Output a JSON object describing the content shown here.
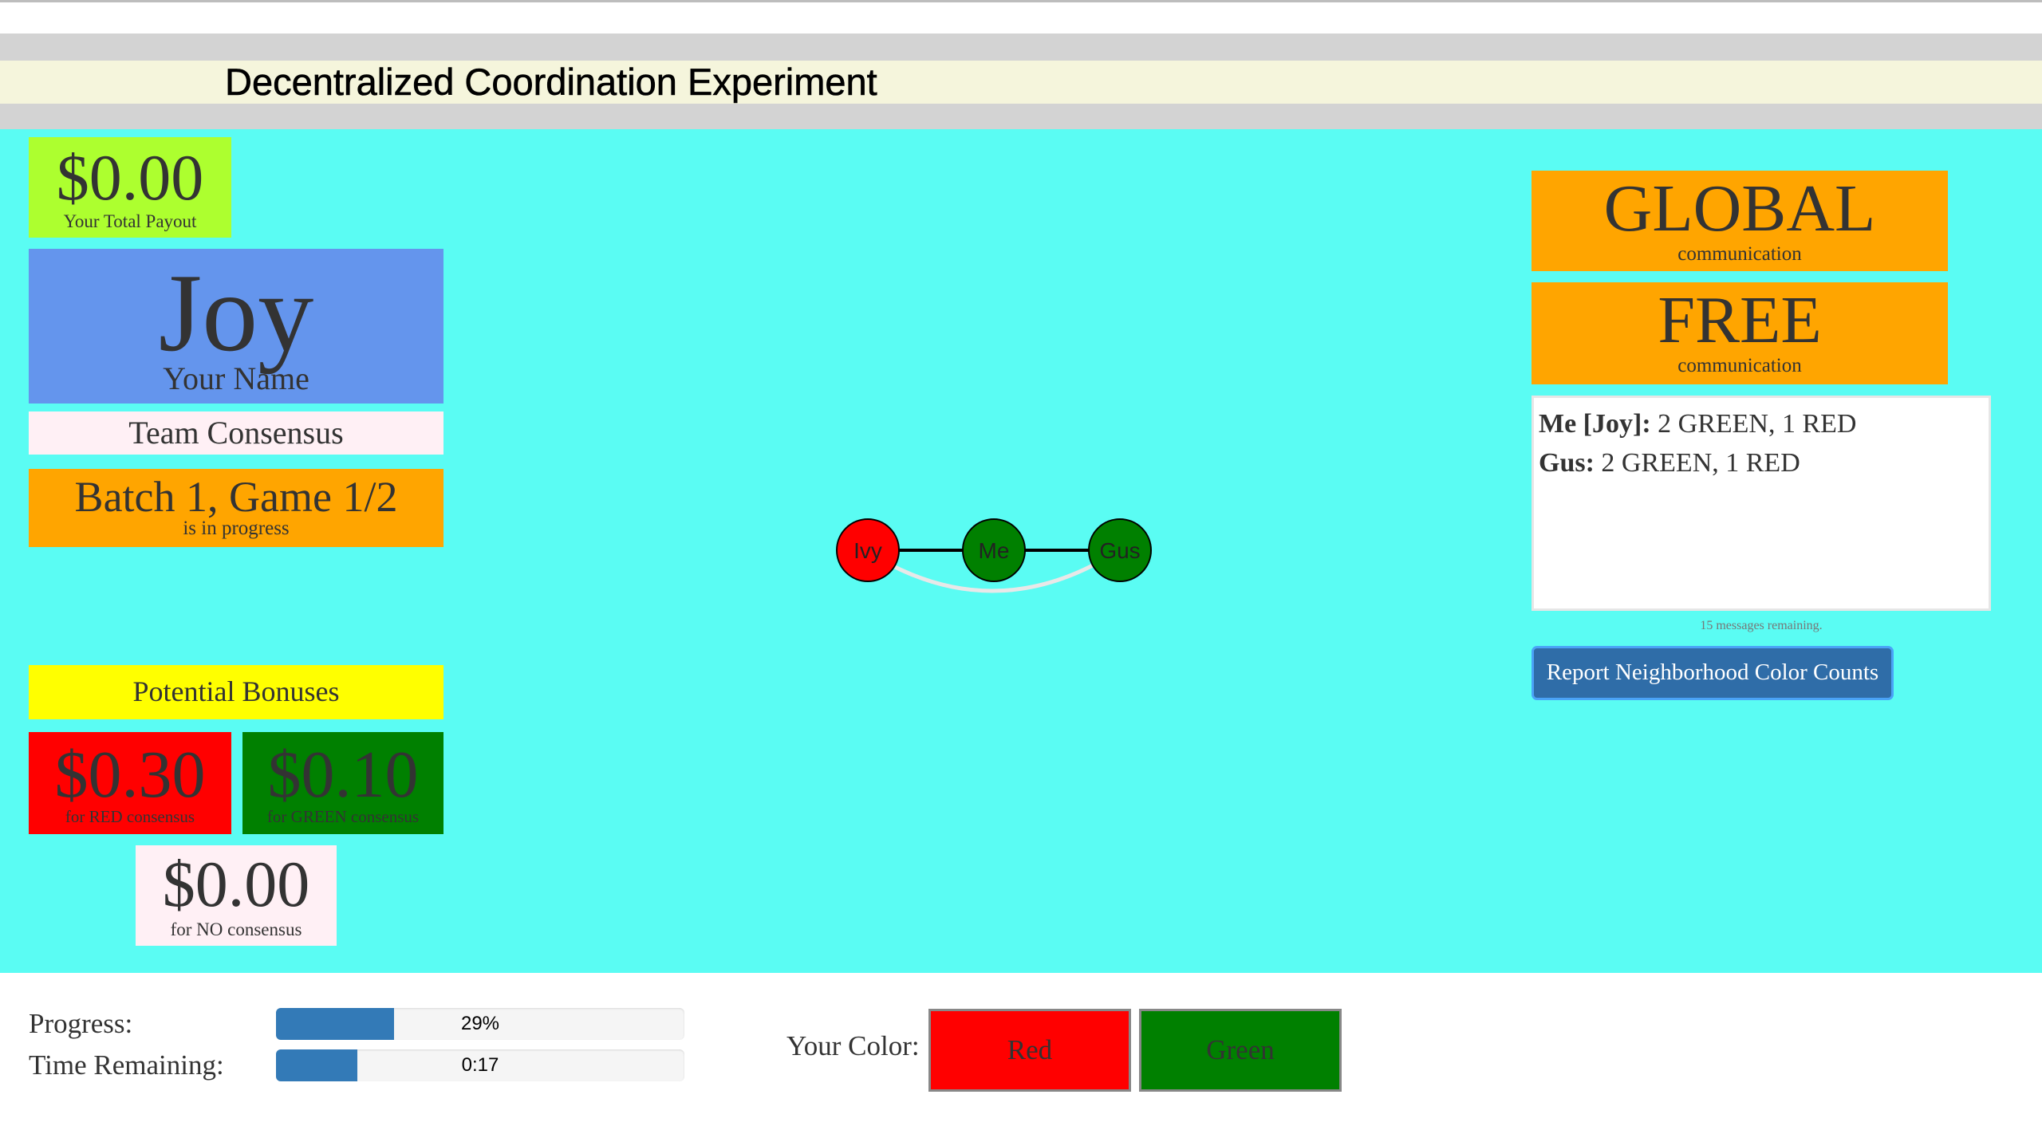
{
  "header": {
    "title": "Decentralized Coordination Experiment"
  },
  "payout": {
    "amount": "$0.00",
    "label": "Your Total Payout"
  },
  "player": {
    "name": "Joy",
    "label": "Your Name"
  },
  "mode": {
    "label": "Team Consensus"
  },
  "batch": {
    "title": "Batch 1, Game 1/2",
    "status": "is in progress"
  },
  "bonuses": {
    "heading": "Potential Bonuses",
    "red": {
      "amount": "$0.30",
      "label": "for RED consensus"
    },
    "green": {
      "amount": "$0.10",
      "label": "for GREEN consensus"
    },
    "none": {
      "amount": "$0.00",
      "label": "for NO consensus"
    }
  },
  "communication": {
    "scope": {
      "value": "GLOBAL",
      "label": "communication"
    },
    "type": {
      "value": "FREE",
      "label": "communication"
    },
    "messages": [
      {
        "sender": "Me [Joy]:",
        "text": " 2 GREEN, 1 RED"
      },
      {
        "sender": "Gus:",
        "text": " 2 GREEN, 1 RED"
      }
    ],
    "remaining": "15 messages remaining.",
    "report_button": "Report Neighborhood Color Counts"
  },
  "network": {
    "nodes": [
      {
        "label": "Ivy",
        "color": "#ff0000"
      },
      {
        "label": "Me",
        "color": "#008000"
      },
      {
        "label": "Gus",
        "color": "#008000"
      }
    ]
  },
  "footer": {
    "progress_label": "Progress:",
    "progress_fraction": 0.29,
    "progress_text": "29%",
    "time_label": "Time Remaining:",
    "time_fraction": 0.2,
    "time_text": "0:17",
    "color_label": "Your Color:",
    "red_label": "Red",
    "green_label": "Green"
  },
  "colors": {
    "background": "#5afcf3",
    "accent": "#ffa500",
    "bar": "#337ab7"
  }
}
